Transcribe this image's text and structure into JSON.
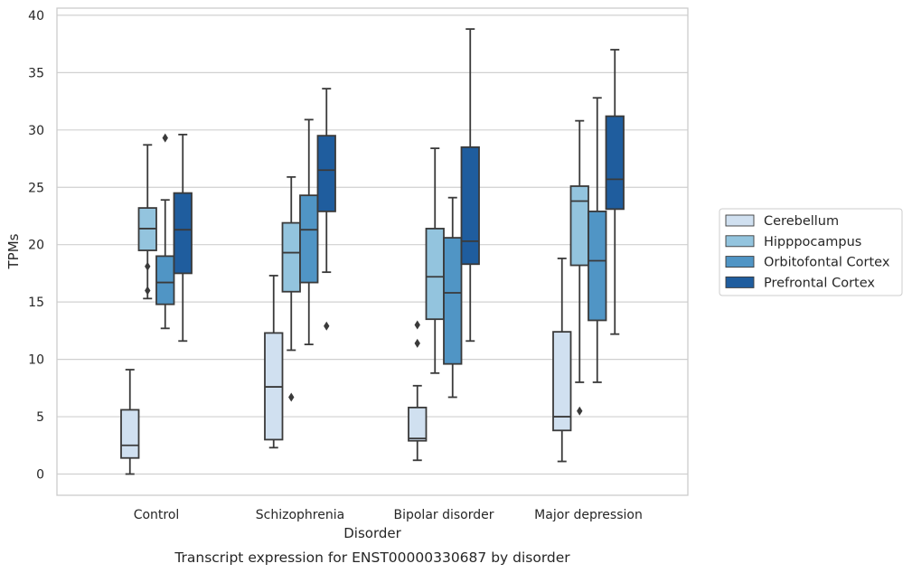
{
  "chart_data": {
    "type": "box",
    "title": "",
    "caption": "Transcript expression for ENST00000330687 by disorder",
    "xlabel": "Disorder",
    "ylabel": "TPMs",
    "ylim": [
      -1.8,
      40.8
    ],
    "yticks": [
      0,
      5,
      10,
      15,
      20,
      25,
      30,
      35,
      40
    ],
    "grid": "horizontal",
    "legend_position": "right",
    "categories": [
      "Control",
      "Schizophrenia",
      "Bipolar disorder",
      "Major depression"
    ],
    "series": [
      {
        "name": "Cerebellum",
        "color": "#d0e0f0",
        "boxes": [
          {
            "whisker_low": 0.0,
            "q1": 1.4,
            "median": 2.5,
            "q3": 5.6,
            "whisker_high": 9.1,
            "outliers": []
          },
          {
            "whisker_low": 2.3,
            "q1": 3.0,
            "median": 7.6,
            "q3": 12.3,
            "whisker_high": 17.3,
            "outliers": []
          },
          {
            "whisker_low": 1.2,
            "q1": 2.9,
            "median": 3.1,
            "q3": 5.8,
            "whisker_high": 7.7,
            "outliers": [
              11.4,
              13.0
            ]
          },
          {
            "whisker_low": 1.1,
            "q1": 3.8,
            "median": 5.0,
            "q3": 12.4,
            "whisker_high": 18.8,
            "outliers": []
          }
        ]
      },
      {
        "name": "Hipppocampus",
        "color": "#93c4de",
        "boxes": [
          {
            "whisker_low": 15.3,
            "q1": 19.5,
            "median": 21.4,
            "q3": 23.2,
            "whisker_high": 28.7,
            "outliers": [
              16.0,
              18.1
            ]
          },
          {
            "whisker_low": 10.8,
            "q1": 15.9,
            "median": 19.3,
            "q3": 21.9,
            "whisker_high": 25.9,
            "outliers": [
              6.7
            ]
          },
          {
            "whisker_low": 8.8,
            "q1": 13.5,
            "median": 17.2,
            "q3": 21.4,
            "whisker_high": 28.4,
            "outliers": []
          },
          {
            "whisker_low": 8.0,
            "q1": 18.2,
            "median": 23.8,
            "q3": 25.1,
            "whisker_high": 30.8,
            "outliers": [
              5.5
            ]
          }
        ]
      },
      {
        "name": "Orbitofontal Cortex",
        "color": "#5095c5",
        "boxes": [
          {
            "whisker_low": 12.7,
            "q1": 14.8,
            "median": 16.7,
            "q3": 19.0,
            "whisker_high": 23.9,
            "outliers": [
              29.3
            ]
          },
          {
            "whisker_low": 11.3,
            "q1": 16.7,
            "median": 21.3,
            "q3": 24.3,
            "whisker_high": 30.9,
            "outliers": []
          },
          {
            "whisker_low": 6.7,
            "q1": 9.6,
            "median": 15.8,
            "q3": 20.6,
            "whisker_high": 24.1,
            "outliers": []
          },
          {
            "whisker_low": 8.0,
            "q1": 13.4,
            "median": 18.6,
            "q3": 22.9,
            "whisker_high": 32.8,
            "outliers": []
          }
        ]
      },
      {
        "name": "Prefrontal Cortex",
        "color": "#1f5d9e",
        "boxes": [
          {
            "whisker_low": 11.6,
            "q1": 17.5,
            "median": 21.3,
            "q3": 24.5,
            "whisker_high": 29.6,
            "outliers": []
          },
          {
            "whisker_low": 17.6,
            "q1": 22.9,
            "median": 26.5,
            "q3": 29.5,
            "whisker_high": 33.6,
            "outliers": [
              12.9
            ]
          },
          {
            "whisker_low": 11.6,
            "q1": 18.3,
            "median": 20.3,
            "q3": 28.5,
            "whisker_high": 38.8,
            "outliers": []
          },
          {
            "whisker_low": 12.2,
            "q1": 23.1,
            "median": 25.7,
            "q3": 31.2,
            "whisker_high": 37.0,
            "outliers": []
          }
        ]
      }
    ]
  }
}
